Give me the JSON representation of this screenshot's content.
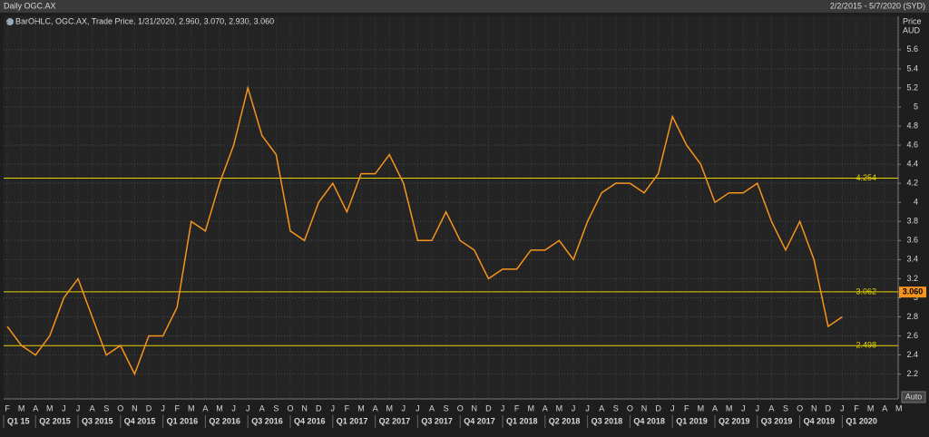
{
  "header": {
    "title": "Daily OGC.AX",
    "range": "2/2/2015 - 5/7/2020 (SYD)",
    "button": "Auto"
  },
  "chart_data": {
    "type": "line",
    "legend": "BarOHLC, OGC.AX, Trade Price, 1/31/2020, 2.960, 3.070, 2.930, 3.060",
    "y_label": [
      "Price",
      "AUD"
    ],
    "categories": [
      "F",
      "M",
      "A",
      "M",
      "J",
      "J",
      "A",
      "S",
      "O",
      "N",
      "D",
      "J",
      "F",
      "M",
      "A",
      "M",
      "J",
      "J",
      "A",
      "S",
      "O",
      "N",
      "D",
      "J",
      "F",
      "M",
      "A",
      "M",
      "J",
      "J",
      "A",
      "S",
      "O",
      "N",
      "D",
      "J",
      "F",
      "M",
      "A",
      "M",
      "J",
      "J",
      "A",
      "S",
      "O",
      "N",
      "D",
      "J",
      "F",
      "M",
      "A",
      "M",
      "J",
      "J",
      "A",
      "S",
      "O",
      "N",
      "D",
      "J",
      "F",
      "M",
      "A",
      "M"
    ],
    "quarters": [
      "Q1 15",
      "Q2 2015",
      "Q3 2015",
      "Q4 2015",
      "Q1 2016",
      "Q2 2016",
      "Q3 2016",
      "Q4 2016",
      "Q1 2017",
      "Q2 2017",
      "Q3 2017",
      "Q4 2017",
      "Q1 2018",
      "Q2 2018",
      "Q3 2018",
      "Q4 2018",
      "Q1 2019",
      "Q2 2019",
      "Q3 2019",
      "Q4 2019",
      "Q1 2020"
    ],
    "series": [
      {
        "name": "OGC.AX",
        "color": "#f7941d",
        "values": [
          2.7,
          2.5,
          2.4,
          2.6,
          3.0,
          3.2,
          2.8,
          2.4,
          2.5,
          2.2,
          2.6,
          2.6,
          2.9,
          3.8,
          3.7,
          4.2,
          4.6,
          5.2,
          4.7,
          4.5,
          3.7,
          3.6,
          4.0,
          4.2,
          3.9,
          4.3,
          4.3,
          4.5,
          4.2,
          3.6,
          3.6,
          3.9,
          3.6,
          3.5,
          3.2,
          3.3,
          3.3,
          3.5,
          3.5,
          3.6,
          3.4,
          3.8,
          4.1,
          4.2,
          4.2,
          4.1,
          4.3,
          4.9,
          4.6,
          4.4,
          4.0,
          4.1,
          4.1,
          4.2,
          3.8,
          3.5,
          3.8,
          3.4,
          2.7,
          2.8,
          null,
          null,
          null,
          null
        ]
      }
    ],
    "hlines": [
      4.254,
      3.062,
      2.498
    ],
    "last_price": {
      "value": 3.06,
      "label": "3.060"
    },
    "ylim": [
      1.94,
      5.95
    ],
    "yticks": [
      2.2,
      2.4,
      2.6,
      2.8,
      3,
      3.2,
      3.4,
      3.6,
      3.8,
      4,
      4.2,
      4.4,
      4.6,
      4.8,
      5,
      5.2,
      5.4,
      5.6
    ],
    "grid": true
  }
}
